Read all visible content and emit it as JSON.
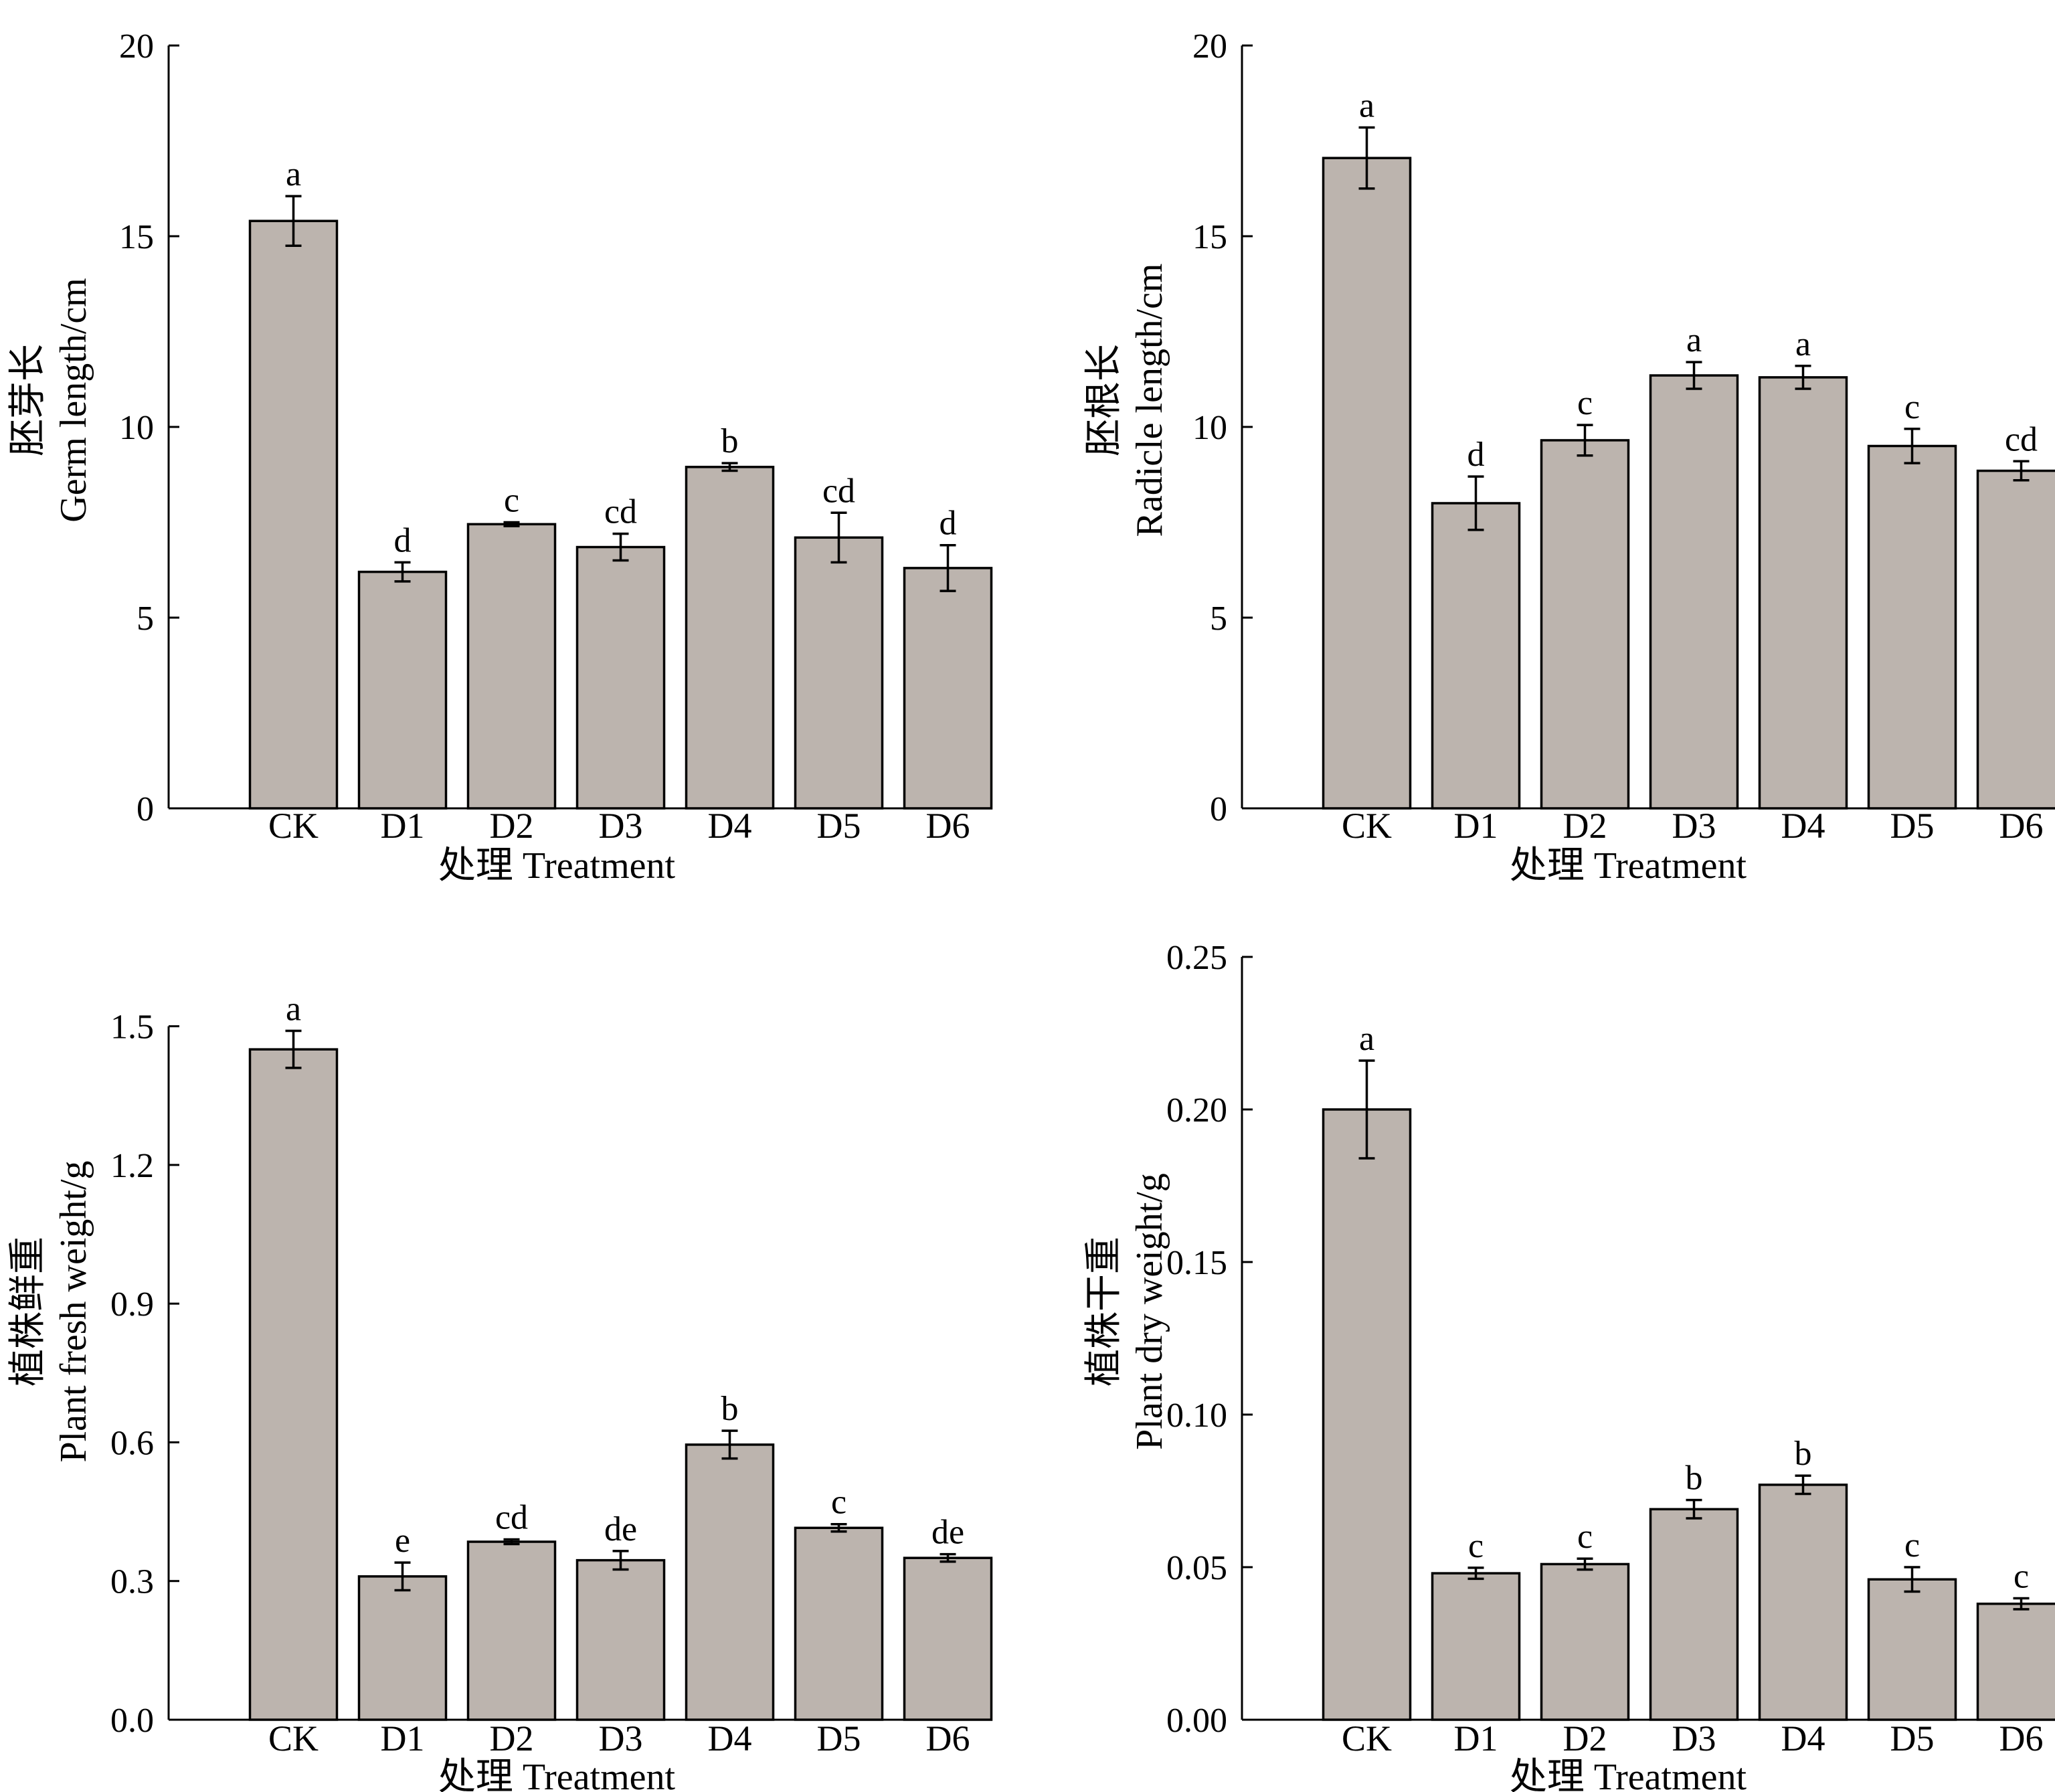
{
  "chart_data": [
    {
      "type": "bar",
      "categories": [
        "CK",
        "D1",
        "D2",
        "D3",
        "D4",
        "D5",
        "D6"
      ],
      "values": [
        15.4,
        6.2,
        7.45,
        6.85,
        8.95,
        7.1,
        6.3
      ],
      "errors": [
        0.65,
        0.25,
        0.05,
        0.35,
        0.1,
        0.65,
        0.6
      ],
      "letters": [
        "a",
        "d",
        "c",
        "cd",
        "b",
        "cd",
        "d"
      ],
      "xlabel": "处理  Treatment",
      "ylabel_cn": "胚芽长",
      "ylabel_en": "Germ length/cm",
      "ylim": [
        0,
        20
      ],
      "yticks": [
        0,
        5,
        10,
        15,
        20
      ],
      "ytick_labels": [
        "0",
        "5",
        "10",
        "15",
        "20"
      ]
    },
    {
      "type": "bar",
      "categories": [
        "CK",
        "D1",
        "D2",
        "D3",
        "D4",
        "D5",
        "D6"
      ],
      "values": [
        17.05,
        8.0,
        9.65,
        11.35,
        11.3,
        9.5,
        8.85
      ],
      "errors": [
        0.8,
        0.7,
        0.4,
        0.35,
        0.3,
        0.45,
        0.25
      ],
      "letters": [
        "a",
        "d",
        "c",
        "a",
        "a",
        "c",
        "cd"
      ],
      "xlabel": "处理  Treatment",
      "ylabel_cn": "胚根长",
      "ylabel_en": "Radicle length/cm",
      "ylim": [
        0,
        20
      ],
      "yticks": [
        0,
        5,
        10,
        15,
        20
      ],
      "ytick_labels": [
        "0",
        "5",
        "10",
        "15",
        "20"
      ]
    },
    {
      "type": "bar",
      "categories": [
        "CK",
        "D1",
        "D2",
        "D3",
        "D4",
        "D5",
        "D6"
      ],
      "values": [
        1.45,
        0.31,
        0.385,
        0.345,
        0.595,
        0.415,
        0.35
      ],
      "errors": [
        0.04,
        0.03,
        0.005,
        0.02,
        0.03,
        0.008,
        0.008
      ],
      "letters": [
        "a",
        "e",
        "cd",
        "de",
        "b",
        "c",
        "de"
      ],
      "xlabel": "处理  Treatment",
      "ylabel_cn": "植株鲜重",
      "ylabel_en": "Plant fresh weight/g",
      "ylim": [
        0,
        1.65
      ],
      "yticks": [
        0,
        0.3,
        0.6,
        0.9,
        1.2,
        1.5
      ],
      "ytick_labels": [
        "0.0",
        "0.3",
        "0.6",
        "0.9",
        "1.2",
        "1.5"
      ]
    },
    {
      "type": "bar",
      "categories": [
        "CK",
        "D1",
        "D2",
        "D3",
        "D4",
        "D5",
        "D6"
      ],
      "values": [
        0.2,
        0.048,
        0.051,
        0.069,
        0.077,
        0.046,
        0.038
      ],
      "errors": [
        0.016,
        0.0018,
        0.0018,
        0.003,
        0.003,
        0.004,
        0.0018
      ],
      "letters": [
        "a",
        "c",
        "c",
        "b",
        "b",
        "c",
        "c"
      ],
      "xlabel": "处理  Treatment",
      "ylabel_cn": "植株干重",
      "ylabel_en": "Plant dry weight/g",
      "ylim": [
        0,
        0.25
      ],
      "yticks": [
        0,
        0.05,
        0.1,
        0.15,
        0.2,
        0.25
      ],
      "ytick_labels": [
        "0.00",
        "0.05",
        "0.10",
        "0.15",
        "0.20",
        "0.25"
      ]
    }
  ],
  "colors": {
    "bar_fill": "#bcb4ae",
    "stroke": "#000000"
  }
}
